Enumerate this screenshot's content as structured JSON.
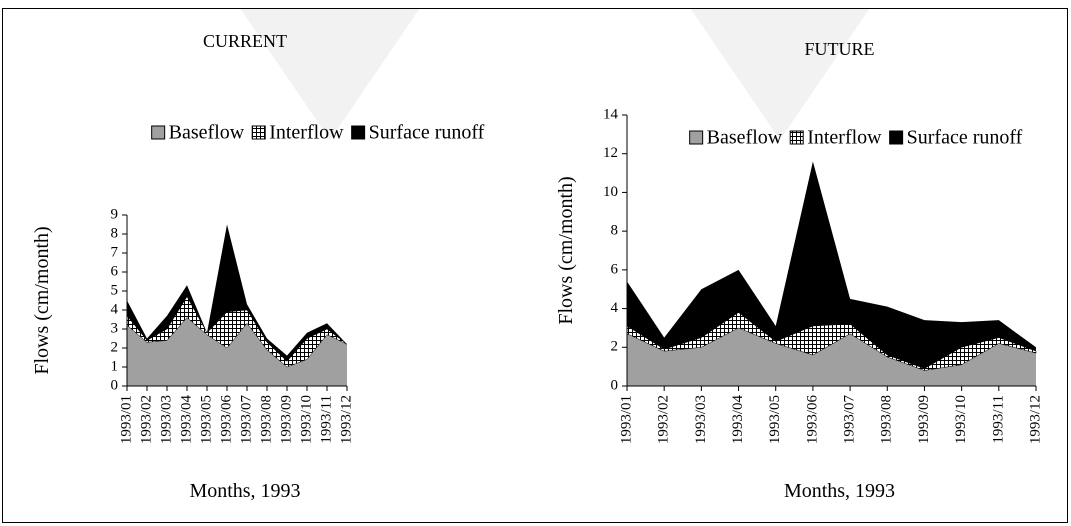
{
  "chart_data": [
    {
      "type": "stacked_area",
      "title": "CURRENT",
      "x_label": "Months, 1993",
      "y_label": "Flows (cm/month)",
      "categories": [
        "1993/01",
        "1993/02",
        "1993/03",
        "1993/04",
        "1993/05",
        "1993/06",
        "1993/07",
        "1993/08",
        "1993/09",
        "1993/10",
        "1993/11",
        "1993/12"
      ],
      "series": [
        {
          "name": "Baseflow",
          "color": "#a0a0a0",
          "values": [
            3.2,
            2.3,
            2.4,
            3.6,
            2.7,
            2.0,
            3.3,
            1.9,
            1.0,
            1.4,
            2.7,
            2.2
          ]
        },
        {
          "name": "Interflow",
          "color": "#ffffff",
          "pattern": "grid",
          "values": [
            0.5,
            0.1,
            0.6,
            1.1,
            0.1,
            1.9,
            0.7,
            0.4,
            0.3,
            1.1,
            0.3,
            0.0
          ]
        },
        {
          "name": "Surface runoff",
          "color": "#000000",
          "values": [
            0.8,
            0.1,
            0.7,
            0.6,
            0.0,
            4.6,
            0.3,
            0.2,
            0.3,
            0.3,
            0.3,
            0.0
          ]
        }
      ],
      "ylim": [
        0,
        9
      ],
      "yticks": [
        0,
        1,
        2,
        3,
        4,
        5,
        6,
        7,
        8,
        9
      ],
      "legend": "top"
    },
    {
      "type": "stacked_area",
      "title": "FUTURE",
      "x_label": "Months, 1993",
      "y_label": "Flows (cm/month)",
      "categories": [
        "1993/01",
        "1993/02",
        "1993/03",
        "1993/04",
        "1993/05",
        "1993/06",
        "1993/07",
        "1993/08",
        "1993/09",
        "1993/10",
        "1993/11",
        "1993/12"
      ],
      "series": [
        {
          "name": "Baseflow",
          "color": "#a0a0a0",
          "values": [
            2.7,
            1.8,
            2.0,
            3.0,
            2.2,
            1.6,
            2.7,
            1.5,
            0.8,
            1.1,
            2.2,
            1.7
          ]
        },
        {
          "name": "Interflow",
          "color": "#ffffff",
          "pattern": "grid",
          "values": [
            0.4,
            0.1,
            0.5,
            0.8,
            0.1,
            1.5,
            0.5,
            0.1,
            0.1,
            0.9,
            0.3,
            0.1
          ]
        },
        {
          "name": "Surface runoff",
          "color": "#000000",
          "values": [
            2.3,
            0.6,
            2.5,
            2.2,
            0.8,
            8.5,
            1.3,
            2.5,
            2.5,
            1.3,
            0.9,
            0.2
          ]
        }
      ],
      "ylim": [
        0,
        14
      ],
      "yticks": [
        0,
        2,
        4,
        6,
        8,
        10,
        12,
        14
      ],
      "legend": "top"
    }
  ]
}
